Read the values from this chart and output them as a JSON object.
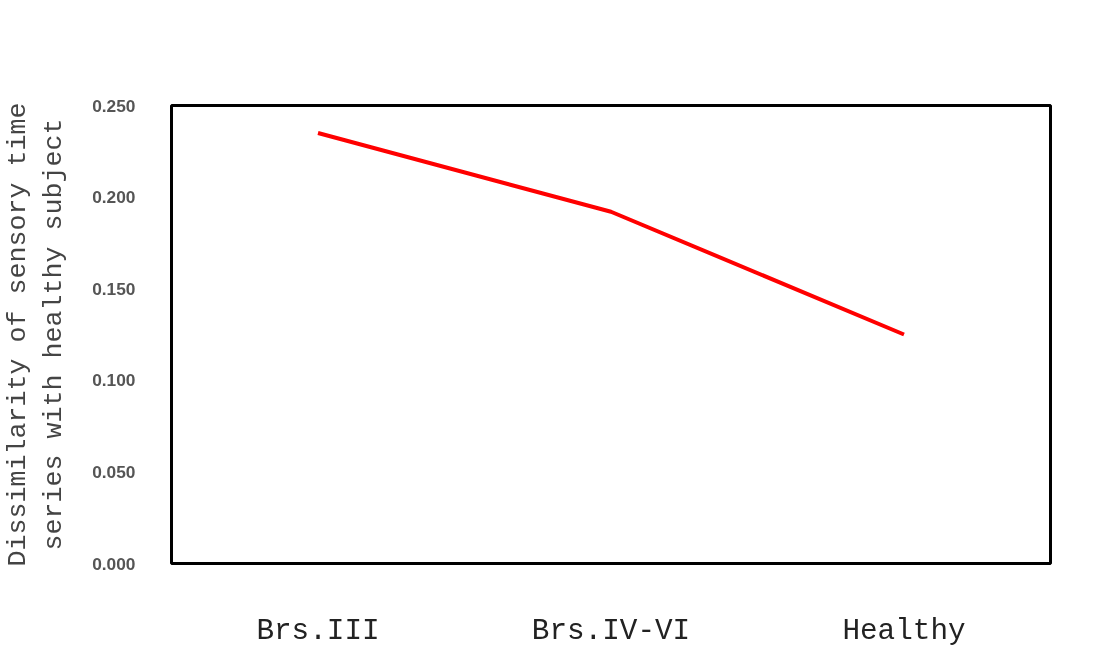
{
  "chart_data": {
    "type": "line",
    "ylabel": "Dissimilarity of sensory time\nseries with healthy subject",
    "categories": [
      "Brs.III",
      "Brs.IV-VI",
      "Healthy"
    ],
    "series": [
      {
        "color": "#ff0000",
        "values": [
          0.235,
          0.192,
          0.125
        ]
      }
    ],
    "ylim": [
      0,
      0.25
    ],
    "yticks": [
      {
        "value": 0,
        "label": "0.000"
      },
      {
        "value": 0.05,
        "label": "0.050"
      },
      {
        "value": 0.1,
        "label": "0.100"
      },
      {
        "value": 0.15,
        "label": "0.150"
      },
      {
        "value": 0.2,
        "label": "0.200"
      },
      {
        "value": 0.25,
        "label": "0.250"
      }
    ],
    "grid": false,
    "marker": "none",
    "line_style": "solid"
  }
}
